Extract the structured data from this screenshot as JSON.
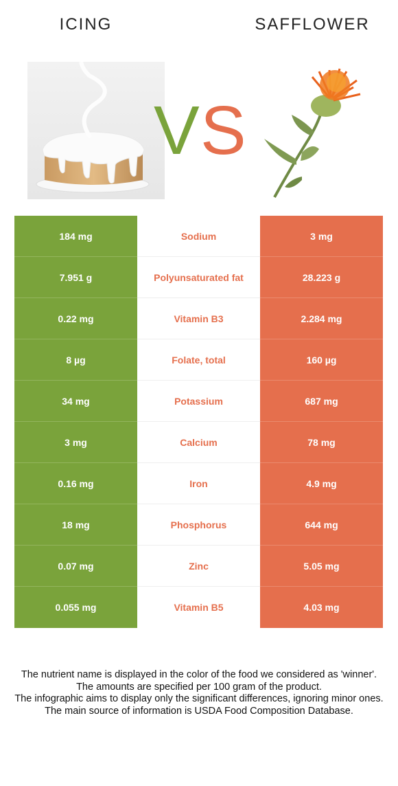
{
  "header": {
    "left_title": "ICING",
    "right_title": "SAFFLOWER",
    "vs_text": "VS"
  },
  "colors": {
    "left_food": "#7aa33b",
    "right_food": "#e56f4d"
  },
  "rows": [
    {
      "nutrient": "Sodium",
      "left": "184 mg",
      "right": "3 mg"
    },
    {
      "nutrient": "Polyunsaturated fat",
      "left": "7.951 g",
      "right": "28.223 g"
    },
    {
      "nutrient": "Vitamin B3",
      "left": "0.22 mg",
      "right": "2.284 mg"
    },
    {
      "nutrient": "Folate, total",
      "left": "8 µg",
      "right": "160 µg"
    },
    {
      "nutrient": "Potassium",
      "left": "34 mg",
      "right": "687 mg"
    },
    {
      "nutrient": "Calcium",
      "left": "3 mg",
      "right": "78 mg"
    },
    {
      "nutrient": "Iron",
      "left": "0.16 mg",
      "right": "4.9 mg"
    },
    {
      "nutrient": "Phosphorus",
      "left": "18 mg",
      "right": "644 mg"
    },
    {
      "nutrient": "Zinc",
      "left": "0.07 mg",
      "right": "5.05 mg"
    },
    {
      "nutrient": "Vitamin B5",
      "left": "0.055 mg",
      "right": "4.03 mg"
    }
  ],
  "footer": [
    "The nutrient name is displayed in the color of the food we considered as 'winner'.",
    "The amounts are specified per 100 gram of the product.",
    "The infographic aims to display only the significant differences, ignoring minor ones.",
    "The main source of information is USDA Food Composition Database."
  ]
}
